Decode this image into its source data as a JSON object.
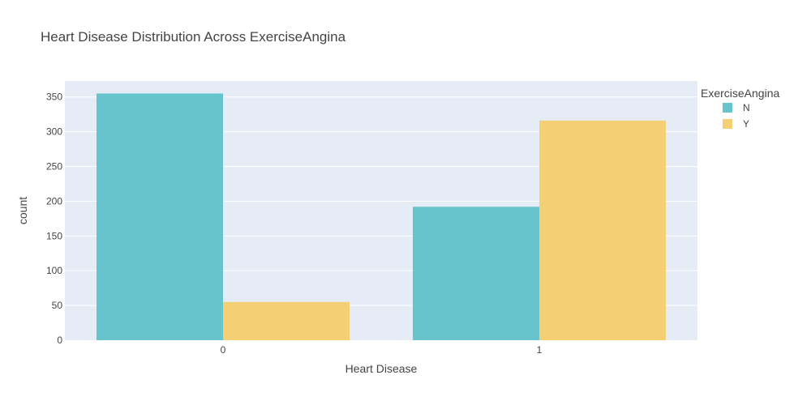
{
  "chart_data": {
    "type": "bar",
    "title": "Heart Disease Distribution Across ExerciseAngina",
    "xlabel": "Heart Disease",
    "ylabel": "count",
    "categories": [
      "0",
      "1"
    ],
    "series": [
      {
        "name": "N",
        "values": [
          355,
          192
        ],
        "color": "#67c4cc"
      },
      {
        "name": "Y",
        "values": [
          55,
          316
        ],
        "color": "#f5cf73"
      }
    ],
    "ylim": [
      0,
      373
    ],
    "yticks": [
      0,
      50,
      100,
      150,
      200,
      250,
      300,
      350
    ],
    "grid": true,
    "legend": {
      "title": "ExerciseAngina",
      "placement": "right"
    },
    "colors": {
      "plot_background": "#e5ecf6",
      "gridline": "#ffffff",
      "text": "#444444"
    }
  }
}
